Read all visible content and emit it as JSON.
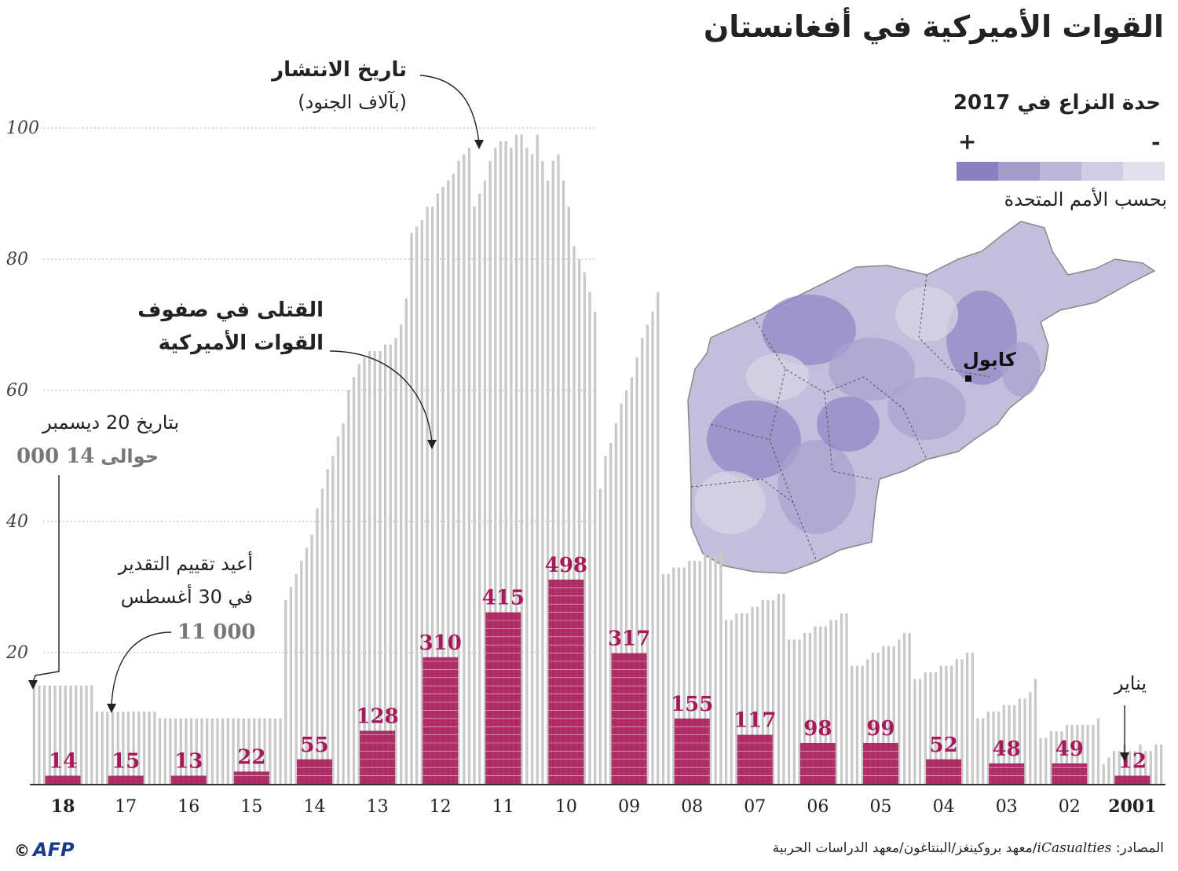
{
  "title": "القوات الأميركية في أفغانستان",
  "legend": {
    "title": "حدة النزاع في 2017",
    "plus": "+",
    "minus": "-",
    "note": "بحسب الأمم المتحدة",
    "colors": [
      "#8a80c0",
      "#a49dcc",
      "#bcb6d9",
      "#d0cce4",
      "#e2dfee"
    ]
  },
  "map": {
    "city_label": "كابول",
    "colors": {
      "land": "#c3bedc",
      "dark": "#8f88c4",
      "mid": "#a8a1d0",
      "light": "#d7d4e6",
      "border": "#555555"
    }
  },
  "annotations": {
    "deploy_title": "تاريخ الانتشار",
    "deploy_sub": "(بآلاف الجنود)",
    "killed_line1": "القتلى في صفوف",
    "killed_line2": "القوات الأميركية",
    "dec_note": "بتاريخ 20 ديسمبر",
    "dec_about": "حوالى",
    "dec_value": "14 000",
    "reeval_line1": "أعيد تقييم التقدير",
    "reeval_line2": "في 30 أغسطس",
    "reeval_value": "11 000",
    "january": "يناير"
  },
  "source": {
    "label": "المصادر:",
    "italic": "iCasualties",
    "rest": "/معهد بروكينغز/البنتاغون/معهد الدراسات الحربية"
  },
  "logo": {
    "copyright": "©",
    "text": "AFP"
  },
  "colors": {
    "bars": "#c9c9c9",
    "casualties": "#a8195a",
    "grid": "#b0b0b0",
    "axis": "#333333"
  },
  "chart_data": {
    "type": "bar",
    "ylim": [
      0,
      100
    ],
    "yticks": [
      20,
      40,
      60,
      80,
      100
    ],
    "xlabel": "",
    "ylabel": "",
    "years": [
      "2001",
      "02",
      "03",
      "04",
      "05",
      "06",
      "07",
      "08",
      "09",
      "10",
      "11",
      "12",
      "13",
      "14",
      "15",
      "16",
      "17",
      "18"
    ],
    "troops_thousands": [
      [
        3,
        4,
        5,
        5,
        6,
        5,
        5,
        6,
        5,
        5,
        6,
        6
      ],
      [
        7,
        7,
        8,
        8,
        8,
        9,
        9,
        9,
        9,
        9,
        9,
        10
      ],
      [
        10,
        10,
        11,
        11,
        11,
        12,
        12,
        12,
        13,
        13,
        14,
        16
      ],
      [
        16,
        16,
        17,
        17,
        17,
        18,
        18,
        18,
        19,
        19,
        20,
        20
      ],
      [
        18,
        18,
        18,
        19,
        20,
        20,
        21,
        21,
        21,
        22,
        23,
        23
      ],
      [
        22,
        22,
        22,
        23,
        23,
        24,
        24,
        24,
        25,
        25,
        26,
        26
      ],
      [
        25,
        25,
        26,
        26,
        26,
        27,
        27,
        28,
        28,
        28,
        29,
        29
      ],
      [
        32,
        32,
        33,
        33,
        33,
        34,
        34,
        34,
        35,
        35,
        35,
        36
      ],
      [
        45,
        50,
        52,
        55,
        58,
        60,
        62,
        65,
        68,
        70,
        72,
        75
      ],
      [
        99,
        95,
        92,
        95,
        96,
        92,
        88,
        82,
        80,
        78,
        75,
        72
      ],
      [
        88,
        90,
        92,
        95,
        97,
        98,
        98,
        97,
        99,
        99,
        97,
        96
      ],
      [
        84,
        85,
        86,
        88,
        88,
        90,
        91,
        92,
        93,
        95,
        96,
        97
      ],
      [
        60,
        62,
        64,
        65,
        66,
        66,
        66,
        67,
        67,
        68,
        70,
        74
      ],
      [
        28,
        30,
        32,
        34,
        36,
        38,
        42,
        45,
        48,
        50,
        53,
        55
      ],
      [
        10,
        10,
        10,
        10,
        10,
        10,
        10,
        10,
        10,
        10,
        10,
        10
      ],
      [
        10,
        10,
        10,
        10,
        10,
        10,
        10,
        10,
        10,
        10,
        10,
        10
      ],
      [
        11,
        11,
        11,
        11,
        11,
        11,
        11,
        11,
        11,
        11,
        11,
        11
      ],
      [
        15,
        15,
        15,
        15,
        15,
        15,
        15,
        15,
        15,
        15,
        15,
        15
      ]
    ],
    "casualties": [
      12,
      49,
      48,
      52,
      99,
      98,
      117,
      155,
      317,
      498,
      415,
      310,
      128,
      55,
      22,
      13,
      15,
      14
    ],
    "reference_values": {
      "dec_2018": 14000,
      "aug_2017": 11000
    }
  }
}
